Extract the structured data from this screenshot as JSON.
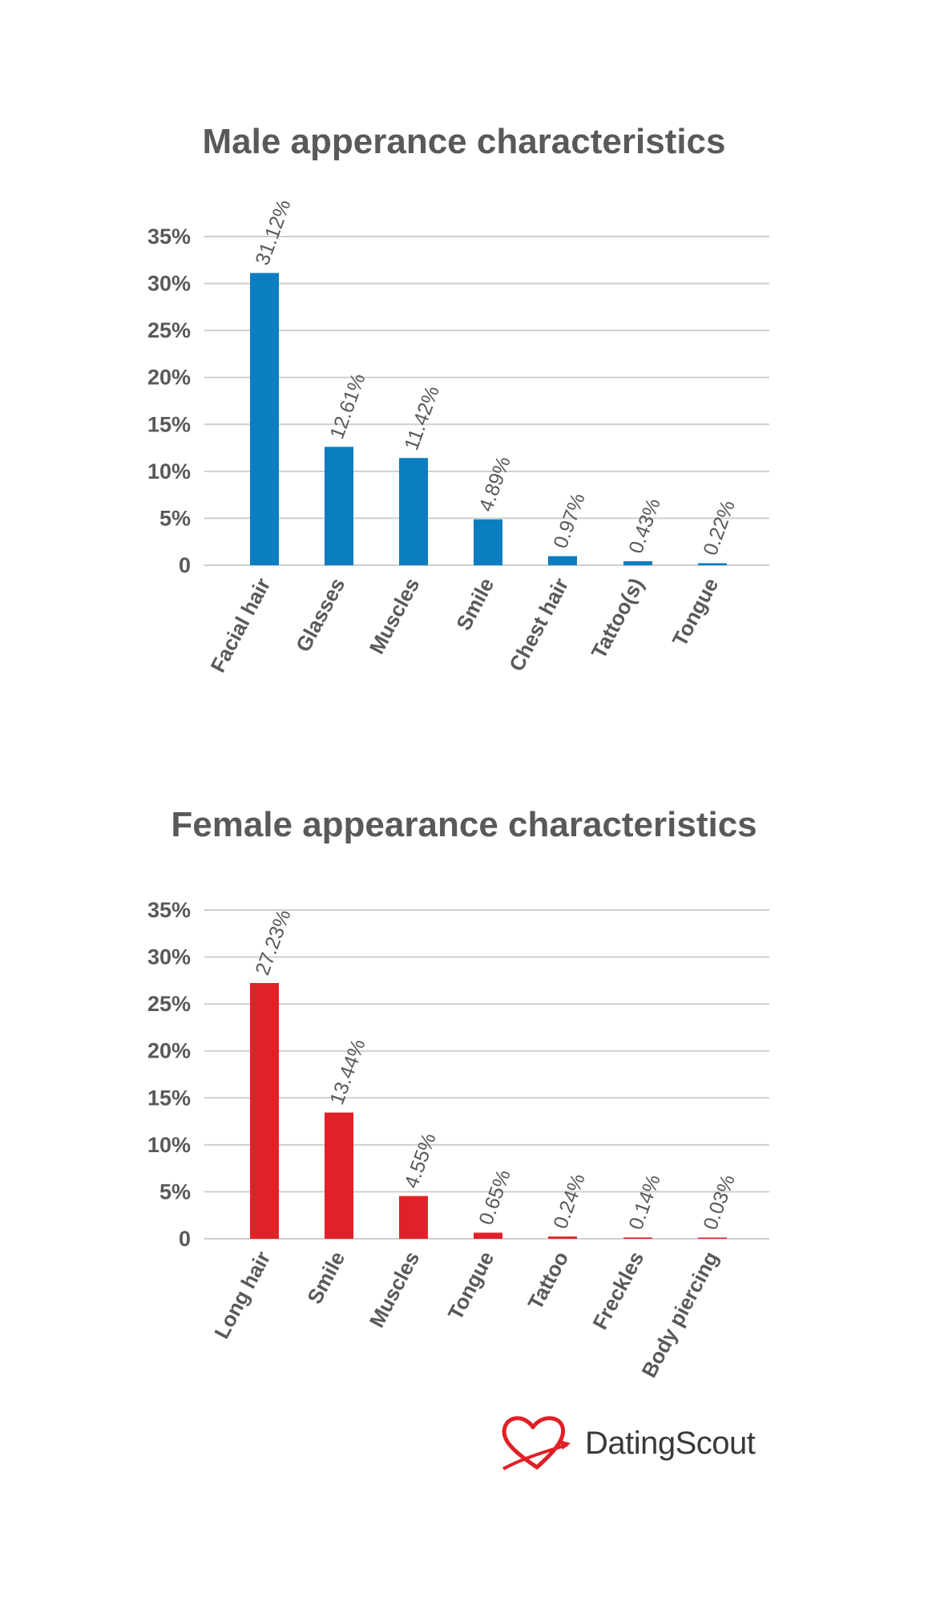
{
  "brand": {
    "name_part1": "Dating",
    "name_part2": "Scout",
    "heart_color": "#e01f26"
  },
  "chart_data": [
    {
      "type": "bar",
      "title": "Male apperance characteristics",
      "categories": [
        "Facial hair",
        "Glasses",
        "Muscles",
        "Smile",
        "Chest hair",
        "Tattoo(s)",
        "Tongue"
      ],
      "values": [
        31.12,
        12.61,
        11.42,
        4.89,
        0.97,
        0.43,
        0.22
      ],
      "value_labels": [
        "31.12%",
        "12.61%",
        "11.42%",
        "4.89%",
        "0.97%",
        "0.43%",
        "0.22%"
      ],
      "ytick_labels": [
        "0",
        "5%",
        "10%",
        "15%",
        "20%",
        "25%",
        "30%",
        "35%"
      ],
      "ylim": [
        0,
        35
      ],
      "grid": true,
      "color": "#0b7dc1"
    },
    {
      "type": "bar",
      "title": "Female appearance characteristics",
      "categories": [
        "Long hair",
        "Smile",
        "Muscles",
        "Tongue",
        "Tattoo",
        "Freckles",
        "Body piercing"
      ],
      "values": [
        27.23,
        13.44,
        4.55,
        0.65,
        0.24,
        0.14,
        0.03
      ],
      "value_labels": [
        "27.23%",
        "13.44%",
        "4.55%",
        "0.65%",
        "0.24%",
        "0.14%",
        "0.03%"
      ],
      "ytick_labels": [
        "0",
        "5%",
        "10%",
        "15%",
        "20%",
        "25%",
        "30%",
        "35%"
      ],
      "ylim": [
        0,
        35
      ],
      "grid": true,
      "color": "#e02228"
    }
  ]
}
